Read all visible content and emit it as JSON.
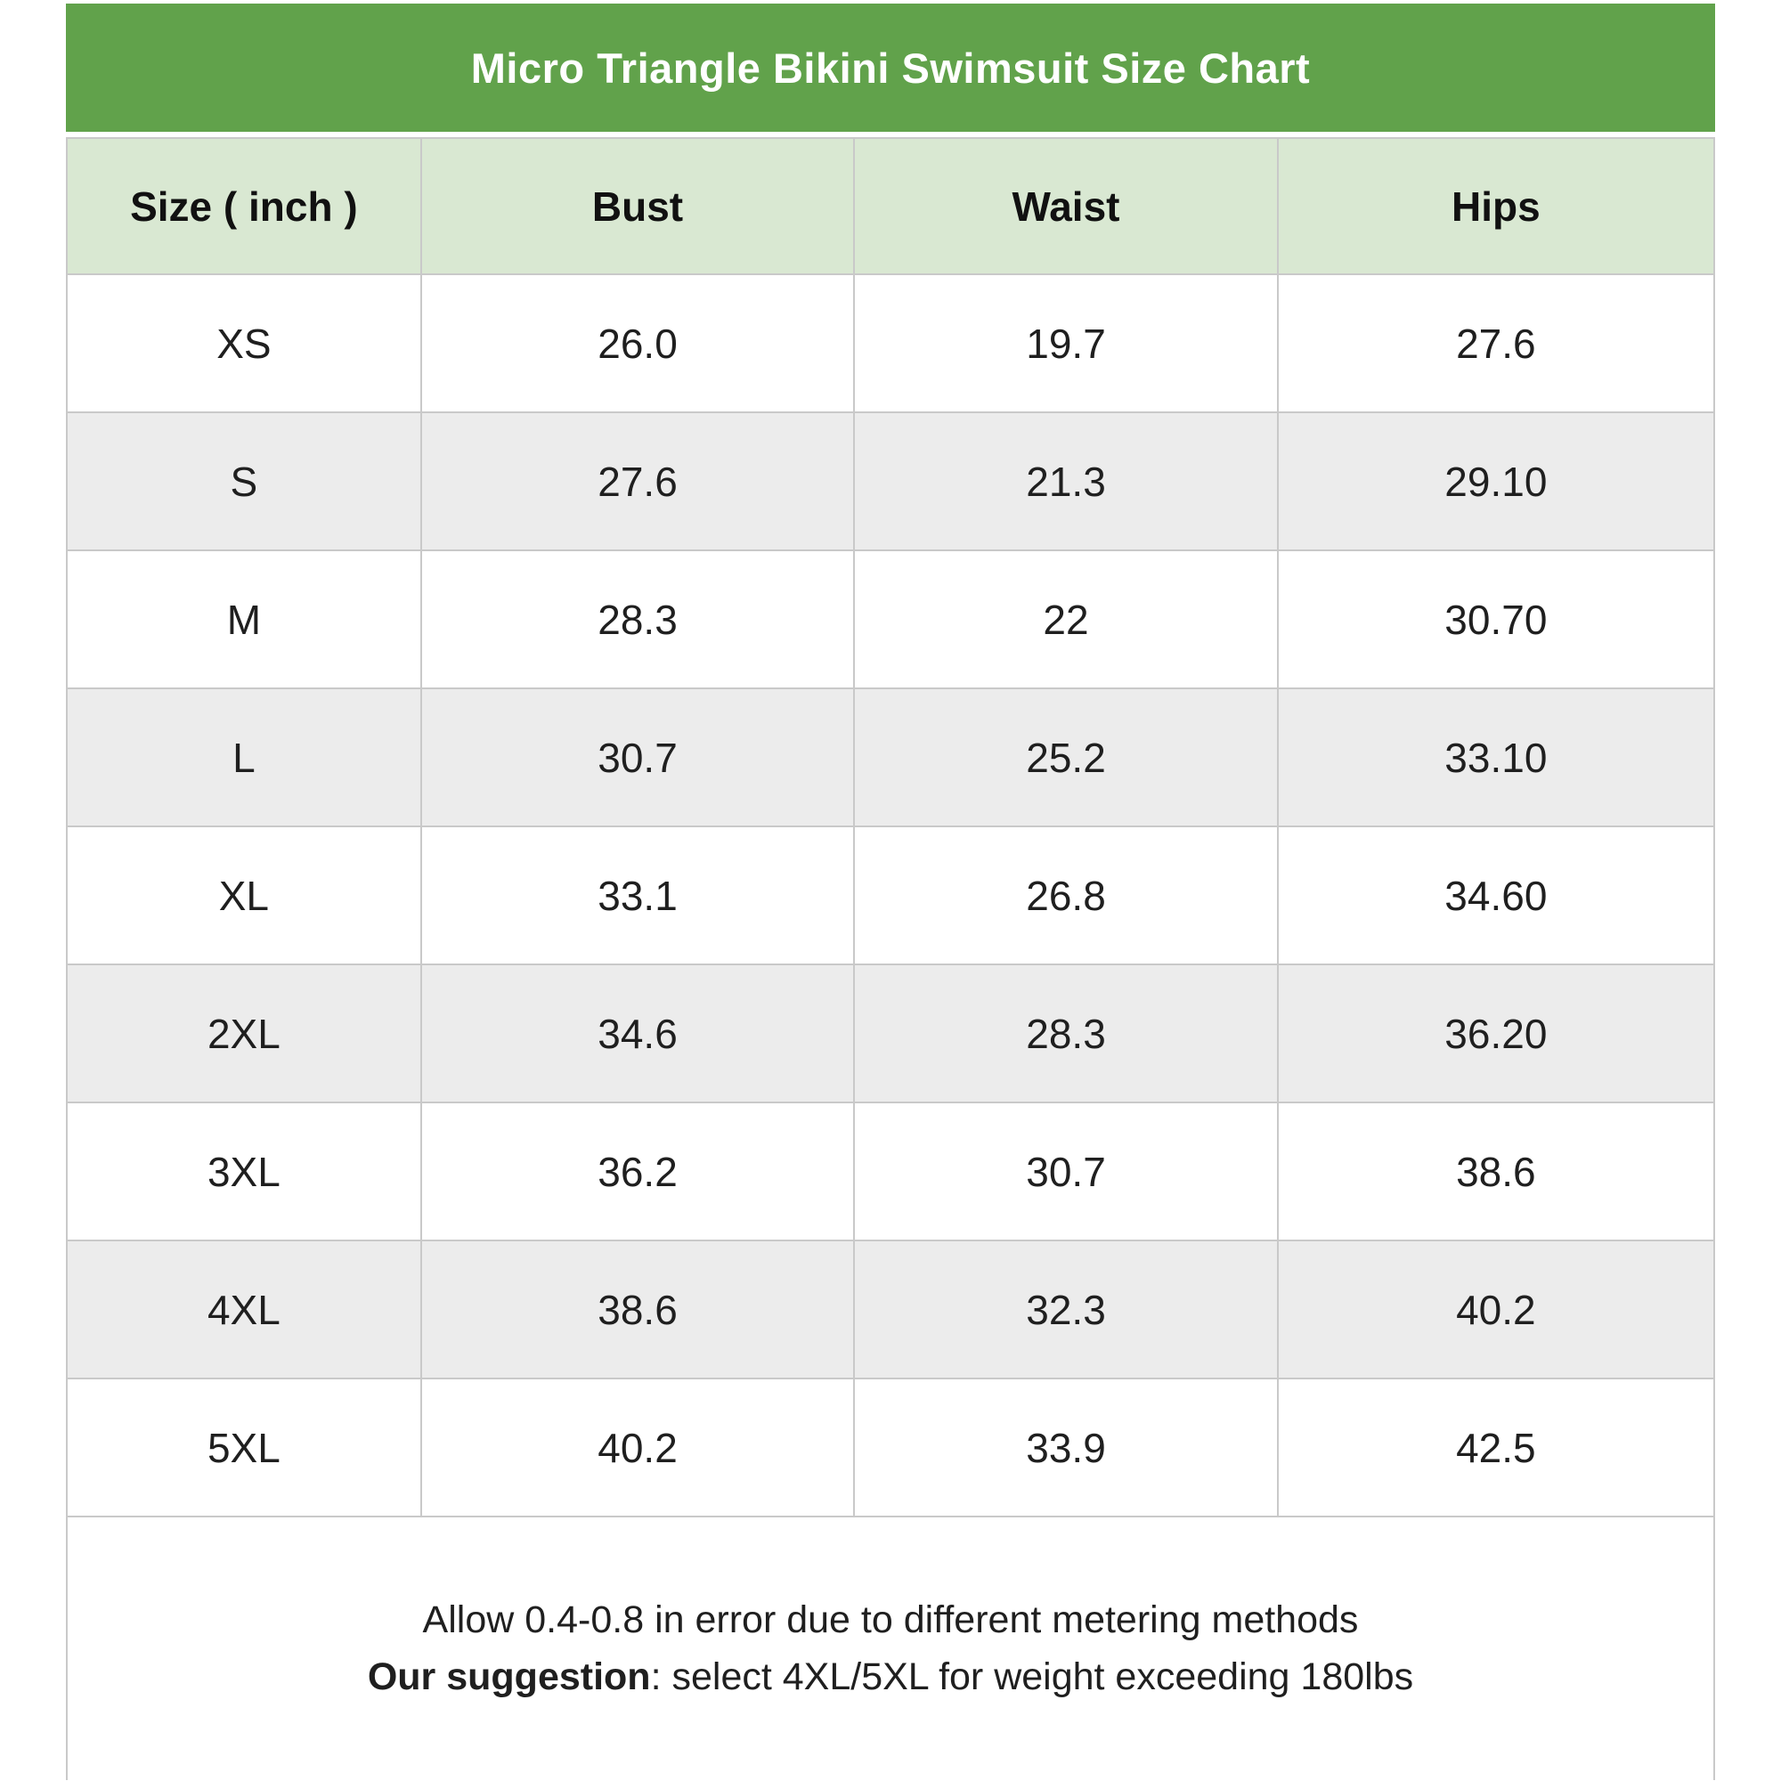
{
  "chart_data": {
    "type": "table",
    "title": "Micro Triangle Bikini Swimsuit Size Chart",
    "columns": [
      "Size ( inch )",
      "Bust",
      "Waist",
      "Hips"
    ],
    "unit": "inch",
    "rows": [
      {
        "size": "XS",
        "bust": "26.0",
        "waist": "19.7",
        "hips": "27.6"
      },
      {
        "size": "S",
        "bust": "27.6",
        "waist": "21.3",
        "hips": "29.10"
      },
      {
        "size": "M",
        "bust": "28.3",
        "waist": "22",
        "hips": "30.70"
      },
      {
        "size": "L",
        "bust": "30.7",
        "waist": "25.2",
        "hips": "33.10"
      },
      {
        "size": "XL",
        "bust": "33.1",
        "waist": "26.8",
        "hips": "34.60"
      },
      {
        "size": "2XL",
        "bust": "34.6",
        "waist": "28.3",
        "hips": "36.20"
      },
      {
        "size": "3XL",
        "bust": "36.2",
        "waist": "30.7",
        "hips": "38.6"
      },
      {
        "size": "4XL",
        "bust": "38.6",
        "waist": "32.3",
        "hips": "40.2"
      },
      {
        "size": "5XL",
        "bust": "40.2",
        "waist": "33.9",
        "hips": "42.5"
      }
    ],
    "notes": [
      "Allow 0.4-0.8 in error due to different metering methods",
      "Our suggestion: select 4XL/5XL for weight exceeding 180lbs"
    ]
  },
  "footer": {
    "line1": "Allow 0.4-0.8 in error due to different metering methods",
    "line2_bold": "Our suggestion",
    "line2_rest": ": select 4XL/5XL for weight exceeding 180lbs"
  },
  "colors": {
    "title_bar_bg": "#61a24b",
    "title_text": "#ffffff",
    "header_bg": "#d9e8d2",
    "row_bg": "#ffffff",
    "row_alt_bg": "#ececec",
    "border": "#c9c9c9",
    "text": "#1f1f1f"
  }
}
